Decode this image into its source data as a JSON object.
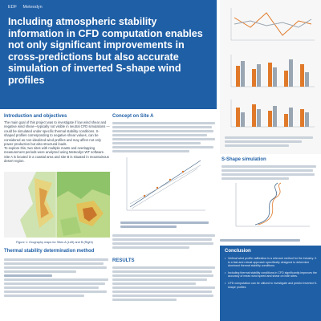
{
  "logos": {
    "edf": "EDF",
    "meteodyn": "Meteodyn"
  },
  "title": "Including atmospheric stability information in CFD computation enables not only significant improvements in cross-predictions but also accurate simulation of inverted S-shape wind profiles",
  "sections": {
    "intro": {
      "heading": "Introduction and objectives",
      "text": "The main goal of this project was to investigate if low wind shear and negative wind shear—typically not visible in neutral CFD simulations — could be simulated under specific thermal stability conditions. S-shaped profiles corresponding to negative shear values, can be considered as non-idealized wind profiles and may affect not only power production but also structural loads.",
      "text2": "To explore this, two sites with multiple masts and overlapping measurement periods were analyzed using Meteodyn WT software. Site A is located in a coastal area and site B is situated in mountainous desert region."
    },
    "figure1_caption": "Figure 1: Orography maps for Sites A (Left) and B (Right)",
    "model": {
      "heading": "Thermal stability determination method"
    },
    "site_a": {
      "heading": "Concept on Site A"
    },
    "results": {
      "heading": "RESULTS"
    },
    "s_shape": {
      "heading": "S-Shape simulation"
    }
  },
  "conclusion": {
    "heading": "Conclusion",
    "items": [
      "Vertical wind profile calibration is a relevant method for the industry. It is a fast and robust approach specifically designed to determine dominant thermal stability conditions.",
      "Including thermal stability conditions in CFD significantly improves the accuracy of mean wind speed and shear on both sites.",
      "CFD computation can be utilized to investigate and predict inverted S-shape profiles"
    ]
  }
}
